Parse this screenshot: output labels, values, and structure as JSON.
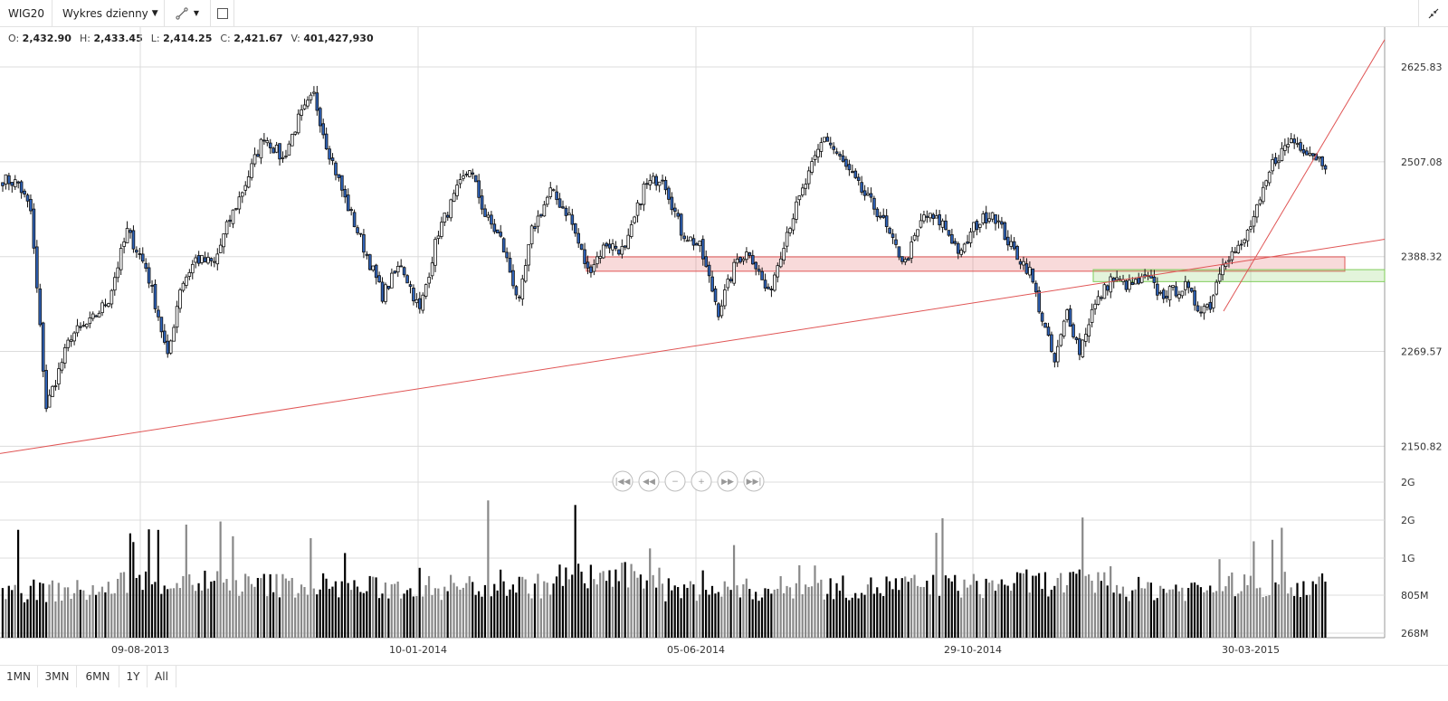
{
  "toolbar": {
    "symbol": "WIG20",
    "period": "Wykres dzienny",
    "draw_tool_icon": "pen-line-icon",
    "rect_tool_icon": "rectangle-icon",
    "collapse_icon": "collapse-icon"
  },
  "ohlc": {
    "o_label": "O:",
    "o": "2,432.90",
    "h_label": "H:",
    "h": "2,433.45",
    "l_label": "L:",
    "l": "2,414.25",
    "c_label": "C:",
    "c": "2,421.67",
    "v_label": "V:",
    "v": "401,427,930"
  },
  "ranges": [
    "1MN",
    "3MN",
    "6MN",
    "1Y",
    "All"
  ],
  "nav_buttons": [
    {
      "icon": "first-icon",
      "glyph": "|◀◀"
    },
    {
      "icon": "back-icon",
      "glyph": "◀◀"
    },
    {
      "icon": "zoom-out-icon",
      "glyph": "−"
    },
    {
      "icon": "zoom-in-icon",
      "glyph": "+"
    },
    {
      "icon": "forward-icon",
      "glyph": "▶▶"
    },
    {
      "icon": "last-icon",
      "glyph": "▶▶|"
    }
  ],
  "colors": {
    "up": "#ffffff",
    "down": "#2e62b8",
    "wick": "#111111",
    "volume": "#000000",
    "grid": "#dcdcdc",
    "trend": "#e05555",
    "zone_red": "#e05555",
    "zone_green": "#7fcc5a"
  },
  "chart_data": {
    "type": "candlestick",
    "price_axis": {
      "ticks": [
        2150.82,
        2269.57,
        2388.32,
        2507.08,
        2625.83
      ],
      "tick_labels": [
        "2150.82",
        "2269.57",
        "2388.32",
        "2507.08",
        "2625.83"
      ],
      "ylim": [
        2115,
        2670
      ]
    },
    "volume_axis": {
      "tick_labels": [
        "2G",
        "2G",
        "1G",
        "805M",
        "268M"
      ]
    },
    "date_axis": {
      "labels": [
        "09-08-2013",
        "10-01-2014",
        "05-06-2014",
        "29-10-2014",
        "30-03-2015"
      ]
    },
    "anchors": [
      [
        0,
        2485
      ],
      [
        5,
        2480
      ],
      [
        9,
        2445
      ],
      [
        14,
        2200
      ],
      [
        18,
        2245
      ],
      [
        22,
        2290
      ],
      [
        28,
        2305
      ],
      [
        34,
        2335
      ],
      [
        40,
        2420
      ],
      [
        46,
        2375
      ],
      [
        50,
        2315
      ],
      [
        53,
        2260
      ],
      [
        57,
        2350
      ],
      [
        62,
        2385
      ],
      [
        68,
        2380
      ],
      [
        72,
        2425
      ],
      [
        78,
        2480
      ],
      [
        84,
        2540
      ],
      [
        90,
        2510
      ],
      [
        95,
        2560
      ],
      [
        100,
        2590
      ],
      [
        104,
        2530
      ],
      [
        110,
        2460
      ],
      [
        116,
        2400
      ],
      [
        122,
        2340
      ],
      [
        128,
        2380
      ],
      [
        134,
        2320
      ],
      [
        140,
        2420
      ],
      [
        146,
        2470
      ],
      [
        150,
        2500
      ],
      [
        155,
        2440
      ],
      [
        160,
        2410
      ],
      [
        166,
        2330
      ],
      [
        170,
        2420
      ],
      [
        176,
        2470
      ],
      [
        182,
        2440
      ],
      [
        188,
        2370
      ],
      [
        194,
        2405
      ],
      [
        200,
        2395
      ],
      [
        206,
        2475
      ],
      [
        212,
        2490
      ],
      [
        218,
        2420
      ],
      [
        224,
        2400
      ],
      [
        230,
        2320
      ],
      [
        236,
        2385
      ],
      [
        240,
        2395
      ],
      [
        246,
        2340
      ],
      [
        252,
        2420
      ],
      [
        258,
        2480
      ],
      [
        264,
        2540
      ],
      [
        270,
        2505
      ],
      [
        276,
        2470
      ],
      [
        282,
        2440
      ],
      [
        286,
        2405
      ],
      [
        290,
        2380
      ],
      [
        296,
        2440
      ],
      [
        302,
        2430
      ],
      [
        308,
        2390
      ],
      [
        312,
        2425
      ],
      [
        318,
        2445
      ],
      [
        324,
        2400
      ],
      [
        330,
        2370
      ],
      [
        334,
        2310
      ],
      [
        338,
        2255
      ],
      [
        342,
        2320
      ],
      [
        346,
        2270
      ],
      [
        350,
        2320
      ],
      [
        356,
        2360
      ],
      [
        362,
        2352
      ],
      [
        368,
        2360
      ],
      [
        372,
        2340
      ],
      [
        376,
        2345
      ],
      [
        380,
        2350
      ],
      [
        384,
        2325
      ],
      [
        388,
        2328
      ],
      [
        392,
        2385
      ],
      [
        398,
        2400
      ],
      [
        404,
        2455
      ],
      [
        408,
        2505
      ],
      [
        414,
        2535
      ],
      [
        420,
        2520
      ],
      [
        425,
        2505
      ]
    ],
    "volume_profile": [
      470,
      560,
      530,
      500,
      520,
      610,
      480,
      500,
      520,
      550,
      490,
      530
    ],
    "trendlines": [
      {
        "from": [
          "2013-06",
          2150.82
        ],
        "to": [
          "2015-05",
          2410
        ],
        "label": ""
      },
      {
        "from": [
          "2015-03",
          2320
        ],
        "to": [
          "2015-06",
          2660
        ],
        "label": ""
      }
    ],
    "zones": [
      {
        "price_from": 2370,
        "price_to": 2388,
        "color": "red"
      },
      {
        "price_from": 2357,
        "price_to": 2372,
        "color": "green"
      }
    ]
  }
}
